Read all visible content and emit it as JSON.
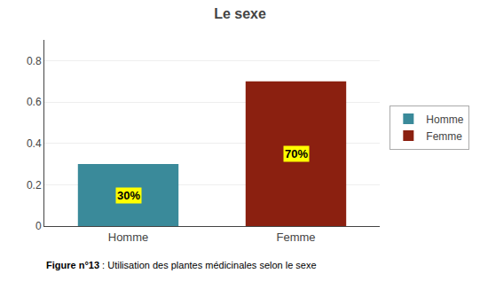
{
  "chart_data": {
    "type": "bar",
    "title": "Le sexe",
    "categories": [
      "Homme",
      "Femme"
    ],
    "values": [
      0.3,
      0.7
    ],
    "value_labels": [
      "30%",
      "70%"
    ],
    "colors": [
      "#3a8a9a",
      "#8b2010"
    ],
    "ylim": [
      0,
      0.9
    ],
    "yticks": [
      0,
      0.2,
      0.4,
      0.6,
      0.8
    ],
    "grid": true,
    "legend": "right",
    "data_labels": true,
    "annotations": [
      "Figure n°13",
      ": Utilisation des plantes médicinales selon le sexe"
    ]
  }
}
